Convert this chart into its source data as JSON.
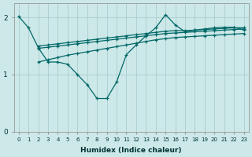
{
  "xlabel": "Humidex (Indice chaleur)",
  "background_color": "#cde8e8",
  "grid_color": "#aacece",
  "line_color": "#006868",
  "xlim": [
    -0.5,
    23.5
  ],
  "ylim": [
    0,
    2.25
  ],
  "yticks": [
    0,
    1,
    2
  ],
  "xticks": [
    0,
    1,
    2,
    3,
    4,
    5,
    6,
    7,
    8,
    9,
    10,
    11,
    12,
    13,
    14,
    15,
    16,
    17,
    18,
    19,
    20,
    21,
    22,
    23
  ],
  "line_jagged_x": [
    0,
    1,
    2,
    3,
    4,
    5,
    6,
    7,
    8,
    9,
    10,
    11,
    12,
    13,
    14,
    15,
    16,
    17,
    18,
    19,
    20,
    21,
    22,
    23
  ],
  "line_jagged_y": [
    2.02,
    1.82,
    1.47,
    1.22,
    1.22,
    1.18,
    1.0,
    0.82,
    0.58,
    0.58,
    0.87,
    1.35,
    1.52,
    1.68,
    1.82,
    2.05,
    1.87,
    1.75,
    1.78,
    1.8,
    1.82,
    1.83,
    1.83,
    1.78
  ],
  "line_top_x": [
    2,
    3,
    4,
    5,
    6,
    7,
    8,
    9,
    10,
    11,
    12,
    13,
    14,
    15,
    16,
    17,
    18,
    19,
    20,
    21,
    22,
    23
  ],
  "line_top_y": [
    1.5,
    1.52,
    1.54,
    1.56,
    1.58,
    1.6,
    1.62,
    1.64,
    1.66,
    1.68,
    1.7,
    1.72,
    1.74,
    1.76,
    1.77,
    1.77,
    1.78,
    1.79,
    1.8,
    1.81,
    1.82,
    1.82
  ],
  "line_mid_x": [
    2,
    3,
    4,
    5,
    6,
    7,
    8,
    9,
    10,
    11,
    12,
    13,
    14,
    15,
    16,
    17,
    18,
    19,
    20,
    21,
    22,
    23
  ],
  "line_mid_y": [
    1.46,
    1.48,
    1.5,
    1.52,
    1.54,
    1.56,
    1.58,
    1.6,
    1.62,
    1.64,
    1.66,
    1.68,
    1.7,
    1.72,
    1.73,
    1.74,
    1.75,
    1.76,
    1.77,
    1.78,
    1.79,
    1.8
  ],
  "line_low_x": [
    2,
    3,
    4,
    5,
    6,
    7,
    8,
    9,
    10,
    11,
    12,
    13,
    14,
    15,
    16,
    17,
    18,
    19,
    20,
    21,
    22,
    23
  ],
  "line_low_y": [
    1.22,
    1.26,
    1.3,
    1.34,
    1.37,
    1.4,
    1.43,
    1.46,
    1.49,
    1.52,
    1.55,
    1.58,
    1.61,
    1.63,
    1.65,
    1.66,
    1.67,
    1.68,
    1.69,
    1.7,
    1.71,
    1.72
  ]
}
